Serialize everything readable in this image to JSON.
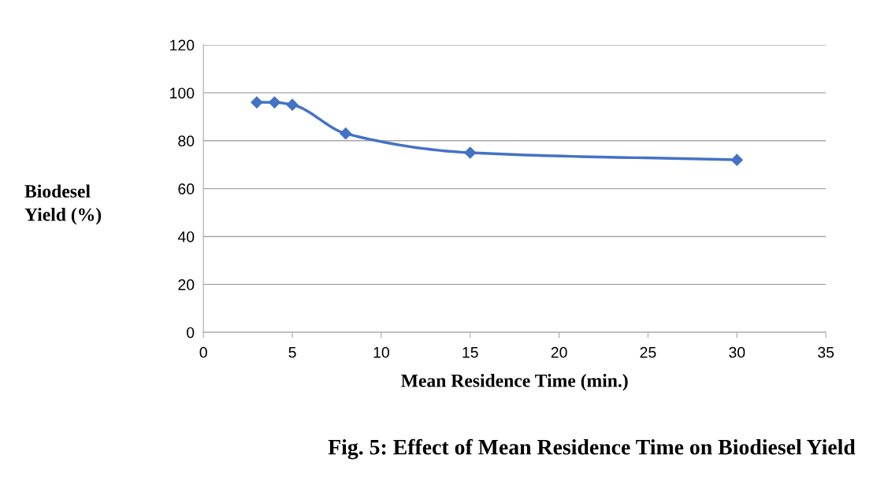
{
  "chart_data": {
    "type": "line",
    "xlabel": "Mean Residence Time (min.)",
    "ylabel": "Biodesel\nYield (%)",
    "annotations": [
      "Fig. 5: Effect of Mean Residence Time on Biodiesel Yield"
    ],
    "x": [
      3,
      4,
      5,
      8,
      15,
      30
    ],
    "series": [
      {
        "color": "#4472c4",
        "values": [
          96,
          96,
          95,
          83,
          75,
          72
        ]
      }
    ],
    "xlim": [
      0,
      35
    ],
    "xticks": [
      0,
      5,
      10,
      15,
      20,
      25,
      30,
      35
    ],
    "ylim": [
      0,
      120
    ],
    "yticks": [
      0,
      20,
      40,
      60,
      80,
      100,
      120
    ],
    "grid": "y",
    "marker": "diamond",
    "line_style": "solid",
    "legend": false
  }
}
